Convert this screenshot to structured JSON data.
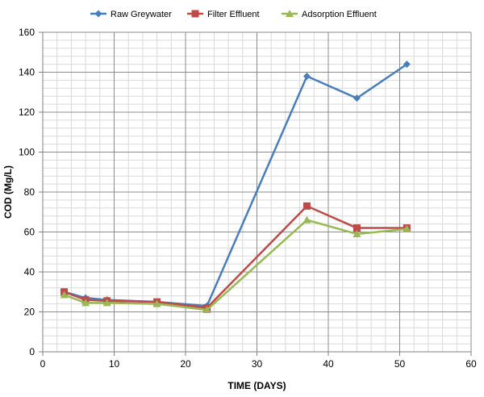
{
  "chart_data": {
    "type": "line",
    "title": "",
    "xlabel": "TIME (DAYS)",
    "ylabel": "COD (Mg/L)",
    "xlim": [
      0,
      60
    ],
    "ylim": [
      0,
      160
    ],
    "x_ticks": [
      0,
      10,
      20,
      30,
      40,
      50,
      60
    ],
    "y_ticks": [
      0,
      20,
      40,
      60,
      80,
      100,
      120,
      140,
      160
    ],
    "grid": true,
    "legend_position": "top",
    "series": [
      {
        "name": "Raw Greywater",
        "color": "#4a7ebb",
        "marker": "diamond",
        "x": [
          3,
          6,
          9,
          16,
          23,
          37,
          44,
          51
        ],
        "y": [
          30,
          27,
          26,
          25,
          23,
          138,
          127,
          144
        ]
      },
      {
        "name": "Filter Effluent",
        "color": "#be4b48",
        "marker": "square",
        "x": [
          3,
          6,
          9,
          16,
          23,
          37,
          44,
          51
        ],
        "y": [
          30,
          26,
          25.5,
          25,
          22,
          73,
          62,
          62
        ]
      },
      {
        "name": "Adsorption Effluent",
        "color": "#98b954",
        "marker": "triangle",
        "x": [
          3,
          6,
          9,
          16,
          23,
          37,
          44,
          51
        ],
        "y": [
          28.5,
          24.5,
          24.5,
          24,
          21,
          66,
          59,
          61.5
        ]
      }
    ]
  }
}
